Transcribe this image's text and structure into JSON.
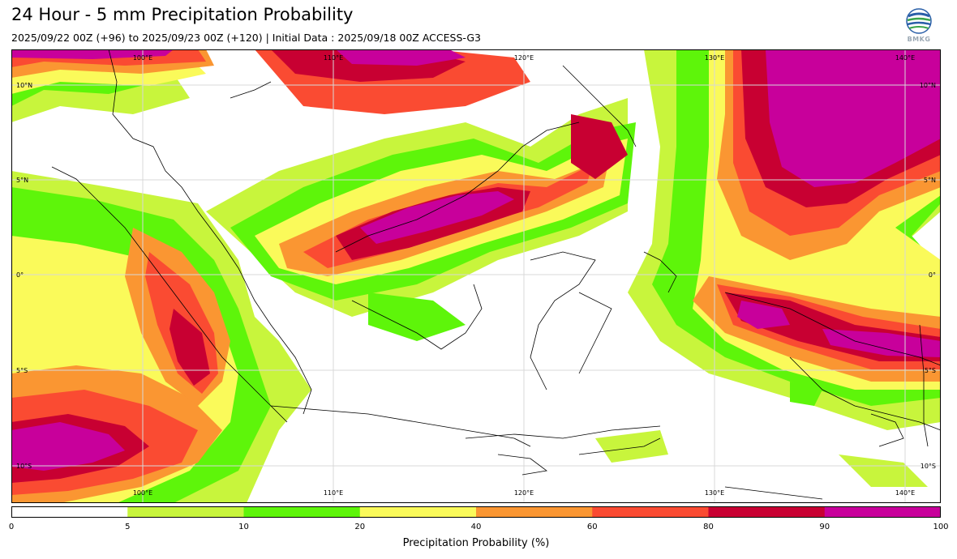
{
  "header": {
    "title": "24 Hour - 5 mm Precipitation Probability",
    "subtitle": "2025/09/22 00Z (+96) to 2025/09/23 00Z (+120) | Initial Data : 2025/09/18 00Z ACCESS-G3",
    "logo_text": "BMKG"
  },
  "map": {
    "lon_top": [
      "100°E",
      "110°E",
      "120°E",
      "130°E",
      "140°E"
    ],
    "lon_bottom": [
      "100°E",
      "110°E",
      "120°E",
      "130°E",
      "140°E"
    ],
    "lat_left": [
      "10°N",
      "5°N",
      "0°",
      "5°S",
      "10°S"
    ],
    "lat_right": [
      "10°N",
      "5°N",
      "0°",
      "5°S",
      "10°S"
    ]
  },
  "colorbar": {
    "title": "Precipitation Probability (%)",
    "ticks": [
      "0",
      "5",
      "10",
      "20",
      "40",
      "60",
      "80",
      "90",
      "100"
    ],
    "colors": [
      "#ffffff",
      "#c8f53c",
      "#5ef50a",
      "#fafa5a",
      "#fa9632",
      "#fa4b32",
      "#c80032",
      "#c8009b"
    ]
  }
}
